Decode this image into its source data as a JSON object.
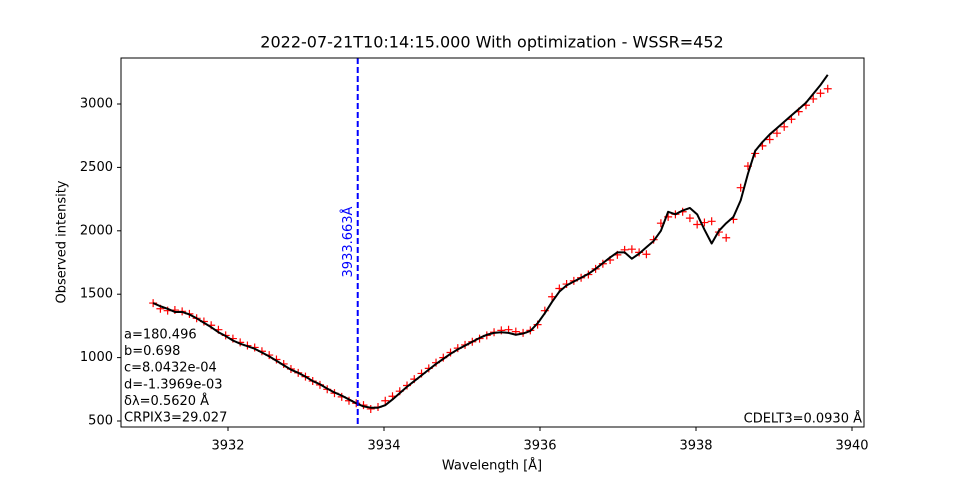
{
  "chart_data": {
    "type": "line",
    "title": "2022-07-21T10:14:15.000 With optimization - WSSR=452",
    "xlabel": "Wavelength [Å]",
    "ylabel": "Observed intensity",
    "x": [
      3931.04,
      3931.133,
      3931.226,
      3931.319,
      3931.412,
      3931.505,
      3931.598,
      3931.691,
      3931.784,
      3931.877,
      3931.97,
      3932.063,
      3932.156,
      3932.249,
      3932.342,
      3932.435,
      3932.528,
      3932.621,
      3932.714,
      3932.807,
      3932.9,
      3932.993,
      3933.086,
      3933.179,
      3933.272,
      3933.365,
      3933.458,
      3933.551,
      3933.644,
      3933.737,
      3933.83,
      3933.923,
      3934.016,
      3934.109,
      3934.202,
      3934.295,
      3934.388,
      3934.481,
      3934.574,
      3934.667,
      3934.76,
      3934.853,
      3934.946,
      3935.039,
      3935.132,
      3935.225,
      3935.318,
      3935.411,
      3935.504,
      3935.597,
      3935.69,
      3935.783,
      3935.876,
      3935.969,
      3936.062,
      3936.155,
      3936.248,
      3936.341,
      3936.434,
      3936.527,
      3936.62,
      3936.713,
      3936.806,
      3936.899,
      3936.992,
      3937.085,
      3937.178,
      3937.271,
      3937.364,
      3937.457,
      3937.55,
      3937.643,
      3937.736,
      3937.829,
      3937.922,
      3938.015,
      3938.108,
      3938.201,
      3938.294,
      3938.387,
      3938.48,
      3938.573,
      3938.666,
      3938.759,
      3938.852,
      3938.945,
      3939.038,
      3939.131,
      3939.224,
      3939.317,
      3939.41,
      3939.503,
      3939.596,
      3939.689
    ],
    "series": [
      {
        "type": "scatter",
        "marker": "+",
        "color": "#ff0000",
        "values": [
          1430,
          1385,
          1370,
          1375,
          1365,
          1345,
          1310,
          1285,
          1255,
          1220,
          1175,
          1150,
          1120,
          1095,
          1080,
          1050,
          1020,
          985,
          950,
          910,
          880,
          850,
          815,
          785,
          750,
          720,
          690,
          660,
          640,
          625,
          595,
          610,
          660,
          695,
          735,
          780,
          830,
          875,
          915,
          960,
          1000,
          1040,
          1075,
          1100,
          1125,
          1150,
          1175,
          1200,
          1215,
          1220,
          1205,
          1195,
          1215,
          1260,
          1370,
          1480,
          1545,
          1580,
          1605,
          1630,
          1655,
          1700,
          1740,
          1770,
          1810,
          1850,
          1855,
          1830,
          1815,
          1930,
          2060,
          2110,
          2130,
          2150,
          2100,
          2050,
          2065,
          2075,
          1990,
          1945,
          2090,
          2340,
          2510,
          2610,
          2670,
          2720,
          2770,
          2820,
          2880,
          2940,
          2990,
          3040,
          3085,
          3120
        ]
      },
      {
        "type": "line",
        "color": "#000000",
        "values": [
          1430,
          1405,
          1385,
          1360,
          1360,
          1340,
          1310,
          1275,
          1240,
          1200,
          1170,
          1135,
          1110,
          1090,
          1070,
          1040,
          1010,
          975,
          940,
          905,
          880,
          850,
          815,
          790,
          755,
          725,
          700,
          670,
          640,
          615,
          605,
          605,
          625,
          670,
          720,
          770,
          815,
          860,
          905,
          950,
          990,
          1030,
          1065,
          1095,
          1125,
          1155,
          1180,
          1195,
          1200,
          1195,
          1180,
          1190,
          1210,
          1270,
          1350,
          1440,
          1520,
          1570,
          1600,
          1630,
          1660,
          1700,
          1745,
          1790,
          1830,
          1830,
          1780,
          1820,
          1870,
          1920,
          2000,
          2150,
          2130,
          2160,
          2180,
          2130,
          2010,
          1900,
          2000,
          2060,
          2110,
          2240,
          2450,
          2630,
          2700,
          2760,
          2810,
          2860,
          2910,
          2960,
          3010,
          3080,
          3150,
          3230
        ]
      }
    ],
    "vline": {
      "value": 3933.663,
      "label": "3933.663Å",
      "color": "#0000ff"
    },
    "annotations": [
      "a=180.496",
      "b=0.698",
      "c=8.0432e-04",
      "d=-1.3969e-03",
      "δλ=0.5620 Å",
      "CRPIX3=29.027"
    ],
    "annotation_right": "CDELT3=0.0930 Å",
    "xlim": [
      3930.628,
      3940.154
    ],
    "ylim": [
      452.7,
      3362.8
    ],
    "xticks": [
      3932,
      3934,
      3936,
      3938,
      3940
    ],
    "yticks": [
      500,
      1000,
      1500,
      2000,
      2500,
      3000
    ],
    "grid": false
  }
}
